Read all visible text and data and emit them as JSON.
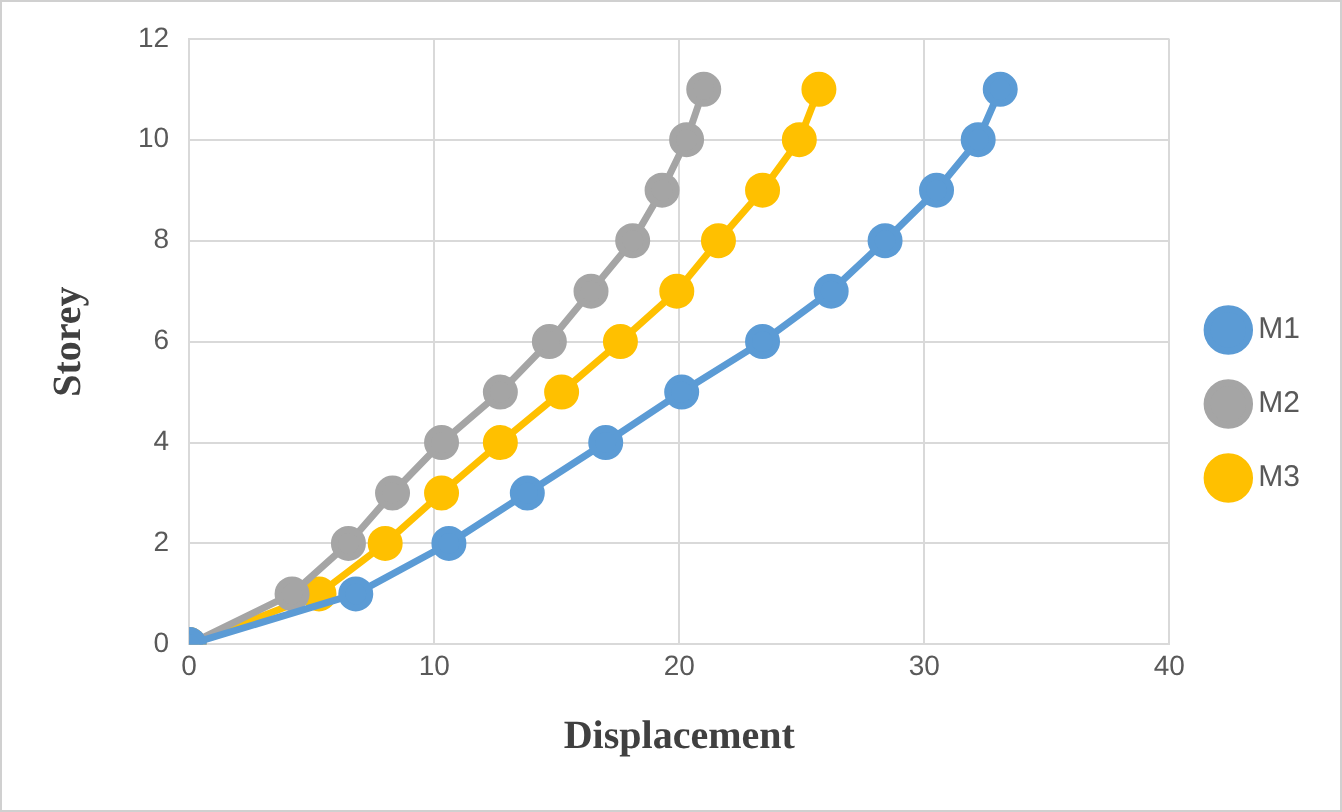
{
  "chart_data": {
    "type": "line",
    "xlabel": "Displacement",
    "ylabel": "Storey",
    "xlim": [
      0,
      40
    ],
    "xticks": [
      0,
      10,
      20,
      30,
      40
    ],
    "ylim": [
      0,
      12
    ],
    "yticks": [
      0,
      2,
      4,
      6,
      8,
      10,
      12
    ],
    "grid": true,
    "legend": "right",
    "marker": "circle",
    "line_style": "solid",
    "series": [
      {
        "name": "M1",
        "color": "#5b9bd5",
        "x": [
          0,
          6.8,
          10.6,
          13.8,
          17.0,
          20.1,
          23.4,
          26.2,
          28.4,
          30.5,
          32.2,
          33.1
        ],
        "values": [
          0,
          1,
          2,
          3,
          4,
          5,
          6,
          7,
          8,
          9,
          10,
          11
        ]
      },
      {
        "name": "M2",
        "color": "#a5a5a5",
        "x": [
          0,
          4.2,
          6.5,
          8.3,
          10.3,
          12.7,
          14.7,
          16.4,
          18.1,
          19.3,
          20.3,
          21.0
        ],
        "values": [
          0,
          1,
          2,
          3,
          4,
          5,
          6,
          7,
          8,
          9,
          10,
          11
        ]
      },
      {
        "name": "M3",
        "color": "#ffc000",
        "x": [
          0,
          5.3,
          8.0,
          10.3,
          12.7,
          15.2,
          17.6,
          19.9,
          21.6,
          23.4,
          24.9,
          25.7
        ],
        "values": [
          0,
          1,
          2,
          3,
          4,
          5,
          6,
          7,
          8,
          9,
          10,
          11
        ]
      }
    ]
  }
}
